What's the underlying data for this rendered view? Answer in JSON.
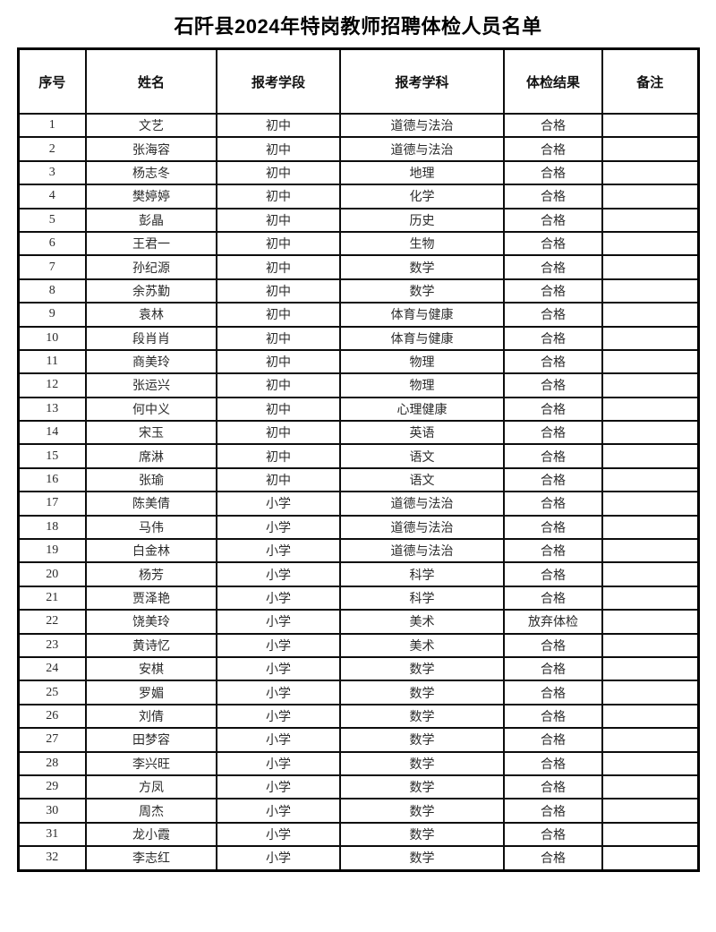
{
  "title": "石阡县2024年特岗教师招聘体检人员名单",
  "table": {
    "headers": [
      "序号",
      "姓名",
      "报考学段",
      "报考学科",
      "体检结果",
      "备注"
    ],
    "rows": [
      [
        "1",
        "文艺",
        "初中",
        "道德与法治",
        "合格",
        ""
      ],
      [
        "2",
        "张海容",
        "初中",
        "道德与法治",
        "合格",
        ""
      ],
      [
        "3",
        "杨志冬",
        "初中",
        "地理",
        "合格",
        ""
      ],
      [
        "4",
        "樊婷婷",
        "初中",
        "化学",
        "合格",
        ""
      ],
      [
        "5",
        "彭晶",
        "初中",
        "历史",
        "合格",
        ""
      ],
      [
        "6",
        "王君一",
        "初中",
        "生物",
        "合格",
        ""
      ],
      [
        "7",
        "孙纪源",
        "初中",
        "数学",
        "合格",
        ""
      ],
      [
        "8",
        "余苏勤",
        "初中",
        "数学",
        "合格",
        ""
      ],
      [
        "9",
        "袁林",
        "初中",
        "体育与健康",
        "合格",
        ""
      ],
      [
        "10",
        "段肖肖",
        "初中",
        "体育与健康",
        "合格",
        ""
      ],
      [
        "11",
        "商美玲",
        "初中",
        "物理",
        "合格",
        ""
      ],
      [
        "12",
        "张运兴",
        "初中",
        "物理",
        "合格",
        ""
      ],
      [
        "13",
        "何中义",
        "初中",
        "心理健康",
        "合格",
        ""
      ],
      [
        "14",
        "宋玉",
        "初中",
        "英语",
        "合格",
        ""
      ],
      [
        "15",
        "席淋",
        "初中",
        "语文",
        "合格",
        ""
      ],
      [
        "16",
        "张瑜",
        "初中",
        "语文",
        "合格",
        ""
      ],
      [
        "17",
        "陈美倩",
        "小学",
        "道德与法治",
        "合格",
        ""
      ],
      [
        "18",
        "马伟",
        "小学",
        "道德与法治",
        "合格",
        ""
      ],
      [
        "19",
        "白金林",
        "小学",
        "道德与法治",
        "合格",
        ""
      ],
      [
        "20",
        "杨芳",
        "小学",
        "科学",
        "合格",
        ""
      ],
      [
        "21",
        "贾泽艳",
        "小学",
        "科学",
        "合格",
        ""
      ],
      [
        "22",
        "饶美玲",
        "小学",
        "美术",
        "放弃体检",
        ""
      ],
      [
        "23",
        "黄诗忆",
        "小学",
        "美术",
        "合格",
        ""
      ],
      [
        "24",
        "安棋",
        "小学",
        "数学",
        "合格",
        ""
      ],
      [
        "25",
        "罗媚",
        "小学",
        "数学",
        "合格",
        ""
      ],
      [
        "26",
        "刘倩",
        "小学",
        "数学",
        "合格",
        ""
      ],
      [
        "27",
        "田梦容",
        "小学",
        "数学",
        "合格",
        ""
      ],
      [
        "28",
        "李兴旺",
        "小学",
        "数学",
        "合格",
        ""
      ],
      [
        "29",
        "方凤",
        "小学",
        "数学",
        "合格",
        ""
      ],
      [
        "30",
        "周杰",
        "小学",
        "数学",
        "合格",
        ""
      ],
      [
        "31",
        "龙小霞",
        "小学",
        "数学",
        "合格",
        ""
      ],
      [
        "32",
        "李志红",
        "小学",
        "数学",
        "合格",
        ""
      ]
    ]
  },
  "colors": {
    "text": "#2b2b2b",
    "border": "#000000",
    "background": "#ffffff"
  }
}
